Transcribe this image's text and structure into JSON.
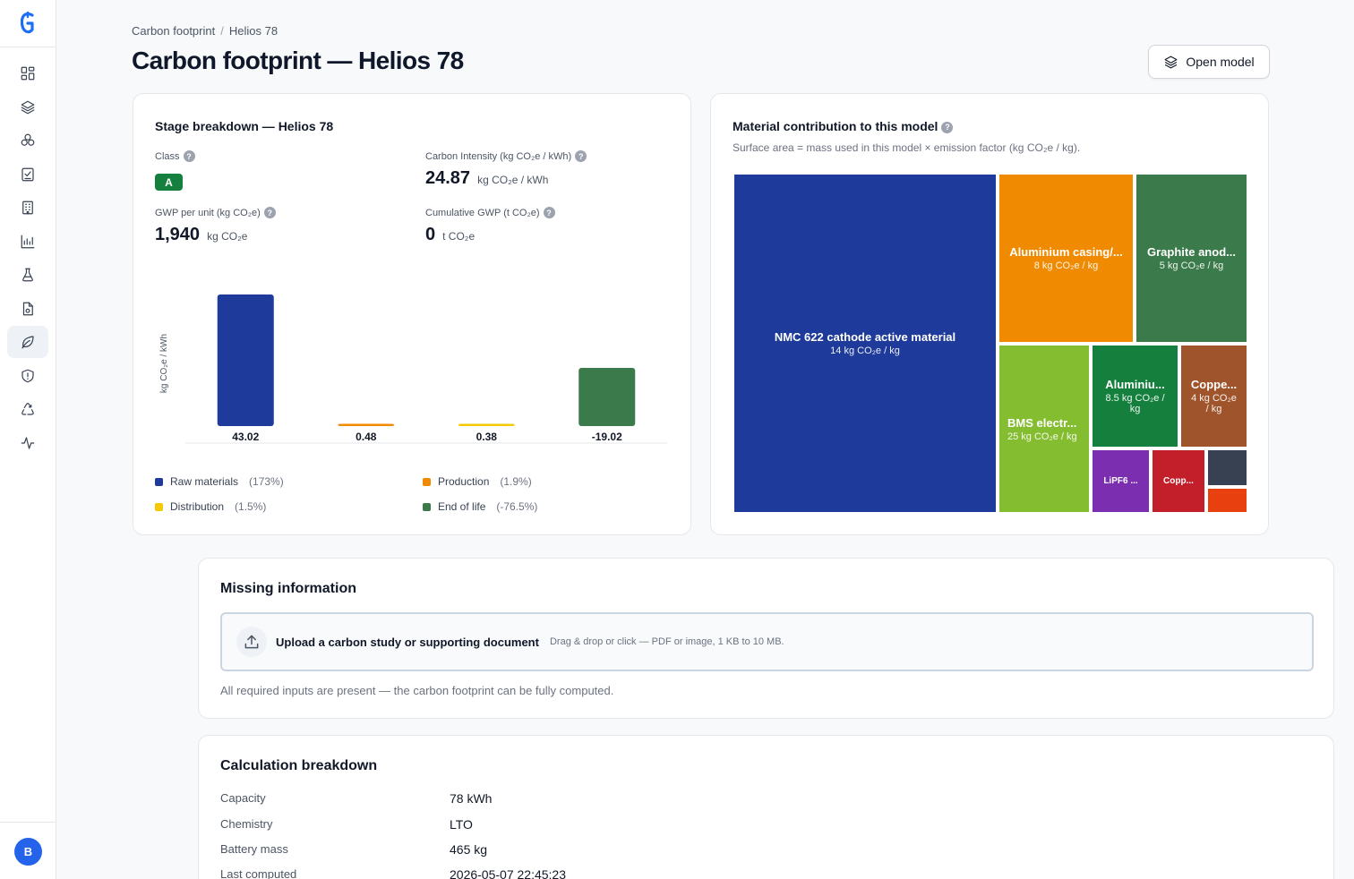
{
  "app": {
    "logo": "G",
    "avatar_initial": "B"
  },
  "sidebar": {
    "items": [
      {
        "icon": "dashboard-icon"
      },
      {
        "icon": "layers-icon"
      },
      {
        "icon": "cells-icon"
      },
      {
        "icon": "checklist-icon"
      },
      {
        "icon": "building-icon"
      },
      {
        "icon": "chart-icon"
      },
      {
        "icon": "flask-icon"
      },
      {
        "icon": "document-icon"
      },
      {
        "icon": "leaf-icon",
        "active": true
      },
      {
        "icon": "shield-icon"
      },
      {
        "icon": "recycle-icon"
      },
      {
        "icon": "activity-icon"
      }
    ]
  },
  "header": {
    "breadcrumb": [
      "Carbon footprint",
      "Helios 78"
    ],
    "breadcrumb_sep": "/",
    "title": "Carbon footprint — Helios 78",
    "open_model_label": "Open model"
  },
  "stage": {
    "title": "Stage breakdown — Helios 78",
    "class_label": "Class",
    "class_value": "A",
    "intensity_label": "Carbon Intensity (kg CO₂e / kWh)",
    "intensity_value": "24.87",
    "intensity_unit": "kg CO₂e / kWh",
    "gwp_label": "GWP per unit (kg CO₂e)",
    "gwp_value": "1,940",
    "gwp_unit": "kg CO₂e",
    "cum_label": "Cumulative GWP (t CO₂e)",
    "cum_value": "0",
    "cum_unit": "t CO₂e",
    "legend": [
      {
        "name": "Raw materials",
        "pct": "(173%)",
        "color": "#1e3a9a"
      },
      {
        "name": "Production",
        "pct": "(1.9%)",
        "color": "#f08a00"
      },
      {
        "name": "Distribution",
        "pct": "(1.5%)",
        "color": "#f5c800"
      },
      {
        "name": "End of life",
        "pct": "(-76.5%)",
        "color": "#3b7a4a"
      }
    ]
  },
  "chart_data": {
    "type": "bar",
    "ylabel": "kg CO₂e / kWh",
    "categories": [
      "Raw materials",
      "Production",
      "Distribution",
      "End of life"
    ],
    "values": [
      43.02,
      0.48,
      0.38,
      -19.02
    ],
    "labels": [
      "43.02",
      "0.48",
      "0.38",
      "-19.02"
    ],
    "colors": [
      "#1e3a9a",
      "#f08a00",
      "#f5c800",
      "#3b7a4a"
    ],
    "grid": false
  },
  "material": {
    "title": "Material contribution to this model",
    "subtitle": "Surface area = mass used in this model × emission factor (kg CO₂e / kg).",
    "tiles": [
      {
        "name": "NMC 622 cathode active material",
        "value": "14 kg CO₂e / kg",
        "color": "#1e3a9a"
      },
      {
        "name": "Aluminium casing/...",
        "value": "8 kg CO₂e / kg",
        "color": "#f08a00"
      },
      {
        "name": "Graphite anod...",
        "value": "5 kg CO₂e / kg",
        "color": "#3b7a4a"
      },
      {
        "name": "BMS electr...",
        "value": "25 kg CO₂e / kg",
        "color": "#84bd2f"
      },
      {
        "name": "Aluminiu...",
        "value": "8.5 kg CO₂e / kg",
        "color": "#15803d"
      },
      {
        "name": "Coppe...",
        "value": "4 kg CO₂e / kg",
        "color": "#a0542b"
      },
      {
        "name": "LiPF6 ...",
        "value": "",
        "color": "#7b2fb0"
      },
      {
        "name": "Copp...",
        "value": "",
        "color": "#c21f2b"
      },
      {
        "name": "",
        "value": "",
        "color": "#374151"
      },
      {
        "name": "",
        "value": "",
        "color": "#e8410f"
      }
    ]
  },
  "missing": {
    "title": "Missing information",
    "upload_label": "Upload a carbon study or supporting document",
    "upload_hint": "Drag & drop or click — PDF or image, 1 KB to 10 MB.",
    "status": "All required inputs are present — the carbon footprint can be fully computed."
  },
  "calc": {
    "title": "Calculation breakdown",
    "rows": [
      {
        "k": "Capacity",
        "v": "78 kWh"
      },
      {
        "k": "Chemistry",
        "v": "LTO"
      },
      {
        "k": "Battery mass",
        "v": "465 kg"
      },
      {
        "k": "Last computed",
        "v": "2026-05-07 22:45:23"
      }
    ]
  }
}
